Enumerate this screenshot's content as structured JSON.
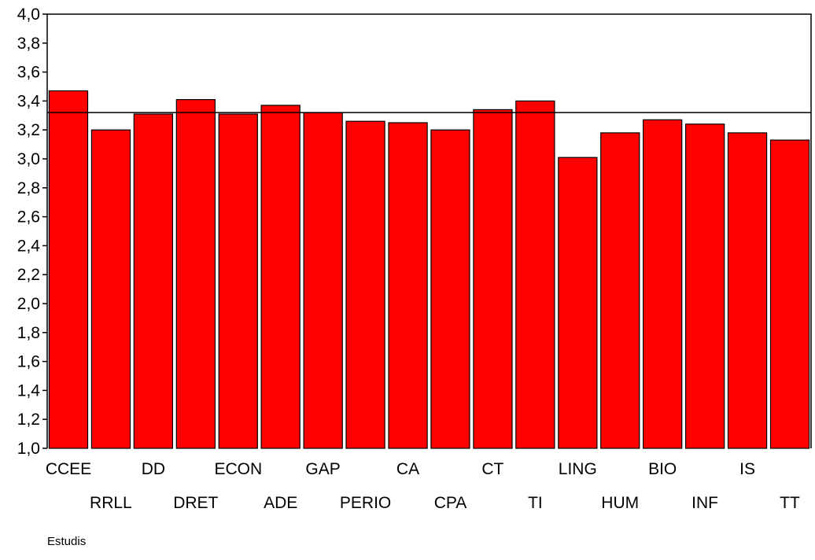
{
  "chart_data": {
    "type": "bar",
    "categories": [
      "CCEE",
      "RRLL",
      "DD",
      "DRET",
      "ECON",
      "ADE",
      "GAP",
      "PERIO",
      "CA",
      "CPA",
      "CT",
      "TI",
      "LING",
      "HUM",
      "BIO",
      "INF",
      "IS",
      "TT"
    ],
    "values": [
      3.47,
      3.2,
      3.31,
      3.41,
      3.31,
      3.37,
      3.32,
      3.26,
      3.25,
      3.2,
      3.34,
      3.4,
      3.01,
      3.18,
      3.27,
      3.24,
      3.18,
      3.13
    ],
    "reference_line": 3.32,
    "xlabel": "Estudis",
    "ylabel": "",
    "ylim": [
      1.0,
      4.0
    ],
    "yticks": [
      "1,0",
      "1,2",
      "1,4",
      "1,6",
      "1,8",
      "2,0",
      "2,2",
      "2,4",
      "2,6",
      "2,8",
      "3,0",
      "3,2",
      "3,4",
      "3,6",
      "3,8",
      "4,0"
    ],
    "colors": {
      "bar": "#ff0000",
      "bar_edge": "#000000",
      "line": "#000000"
    },
    "grid": false,
    "legend": "none"
  }
}
